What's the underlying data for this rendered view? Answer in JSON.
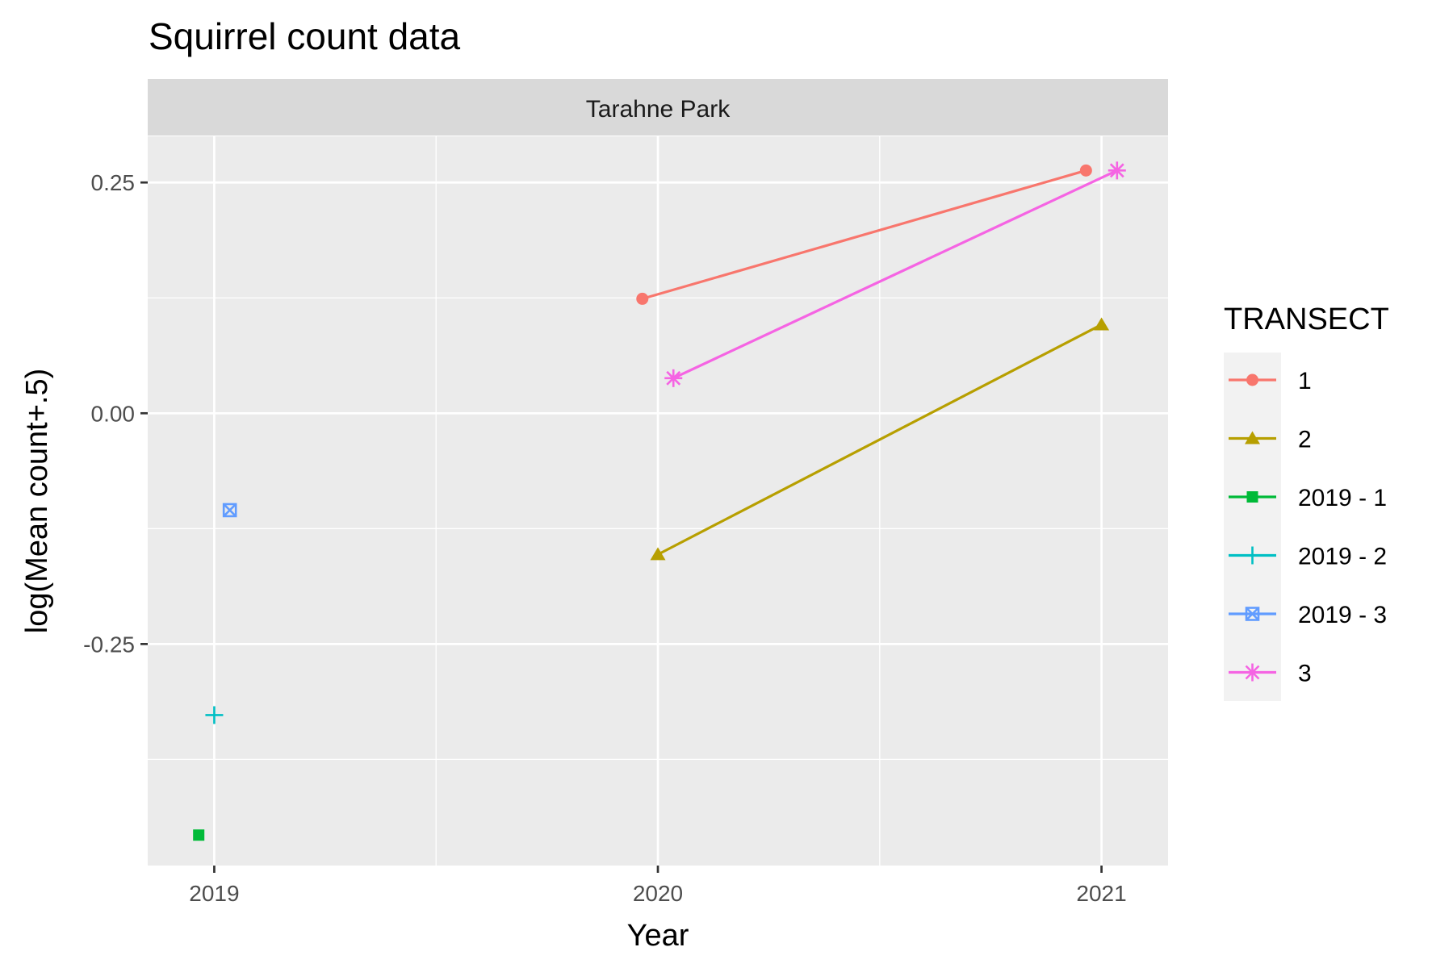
{
  "chart_data": {
    "type": "line",
    "title": "Squirrel count data",
    "facet_label": "Tarahne Park",
    "xlabel": "Year",
    "ylabel": "log(Mean count+.5)",
    "xlim": [
      2018.85,
      2021.15
    ],
    "ylim": [
      -0.49,
      0.3
    ],
    "x_ticks": [
      2019,
      2020,
      2021
    ],
    "x_tick_labels": [
      "2019",
      "2020",
      "2021"
    ],
    "y_ticks": [
      0.25,
      0.0,
      -0.25
    ],
    "y_tick_labels": [
      "0.25",
      "0.00",
      "-0.25"
    ],
    "grid": true,
    "legend": {
      "title": "TRANSECT",
      "placement": "right",
      "entries": [
        "1",
        "2",
        "2019 - 1",
        "2019 - 2",
        "2019 - 3",
        "3"
      ]
    },
    "series": [
      {
        "name": "1",
        "color": "#F8766D",
        "shape": "circle",
        "points": [
          [
            2019.965,
            0.124
          ],
          [
            2020.965,
            0.263
          ]
        ]
      },
      {
        "name": "2",
        "color": "#B79F00",
        "shape": "triangle",
        "points": [
          [
            2020.0,
            -0.153
          ],
          [
            2021.0,
            0.096
          ]
        ]
      },
      {
        "name": "2019 - 1",
        "color": "#00BA38",
        "shape": "square",
        "points": [
          [
            2018.965,
            -0.457
          ]
        ]
      },
      {
        "name": "2019 - 2",
        "color": "#00BFC4",
        "shape": "plus",
        "points": [
          [
            2019.0,
            -0.327
          ]
        ]
      },
      {
        "name": "2019 - 3",
        "color": "#619CFF",
        "shape": "boxcross",
        "points": [
          [
            2019.035,
            -0.105
          ]
        ]
      },
      {
        "name": "3",
        "color": "#F564E3",
        "shape": "asterisk",
        "points": [
          [
            2020.035,
            0.038
          ],
          [
            2021.035,
            0.263
          ]
        ]
      }
    ]
  }
}
